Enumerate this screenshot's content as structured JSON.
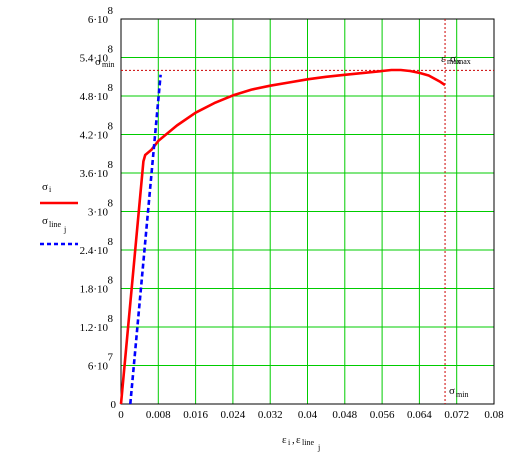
{
  "chart_data": {
    "type": "line",
    "xlim": [
      0,
      0.08
    ],
    "ylim": [
      0,
      600000000
    ],
    "grid": true,
    "grid_color": "#00cc00",
    "x_ticks": [
      {
        "value": 0,
        "label": "0"
      },
      {
        "value": 0.008,
        "label": "0.008"
      },
      {
        "value": 0.016,
        "label": "0.016"
      },
      {
        "value": 0.024,
        "label": "0.024"
      },
      {
        "value": 0.032,
        "label": "0.032"
      },
      {
        "value": 0.04,
        "label": "0.04"
      },
      {
        "value": 0.048,
        "label": "0.048"
      },
      {
        "value": 0.056,
        "label": "0.056"
      },
      {
        "value": 0.064,
        "label": "0.064"
      },
      {
        "value": 0.072,
        "label": "0.072"
      },
      {
        "value": 0.08,
        "label": "0.08"
      }
    ],
    "y_ticks": [
      {
        "value": 0,
        "base": "0",
        "exp": ""
      },
      {
        "value": 60000000,
        "base": "6·10",
        "exp": "7"
      },
      {
        "value": 120000000,
        "base": "1.2·10",
        "exp": "8"
      },
      {
        "value": 180000000,
        "base": "1.8·10",
        "exp": "8"
      },
      {
        "value": 240000000,
        "base": "2.4·10",
        "exp": "8"
      },
      {
        "value": 300000000,
        "base": "3·10",
        "exp": "8"
      },
      {
        "value": 360000000,
        "base": "3.6·10",
        "exp": "8"
      },
      {
        "value": 420000000,
        "base": "4.2·10",
        "exp": "8"
      },
      {
        "value": 480000000,
        "base": "4.8·10",
        "exp": "8"
      },
      {
        "value": 540000000,
        "base": "5.4·10",
        "exp": "8"
      },
      {
        "value": 600000000,
        "base": "6·10",
        "exp": "8"
      }
    ],
    "xlabel": {
      "a": "ε",
      "a_sub": "i",
      "sep": ",",
      "b": "ε",
      "b_sub": "line",
      "b_subsub": "j"
    },
    "legend": [
      {
        "symbol": "σ",
        "sub": "i",
        "subsub": "",
        "color": "#ff0000",
        "dash": "solid"
      },
      {
        "symbol": "σ",
        "sub": "line",
        "subsub": "j",
        "color": "#0000ff",
        "dash": "dashed"
      }
    ],
    "series": [
      {
        "color": "#ff0000",
        "style": "solid",
        "points": [
          [
            0,
            0
          ],
          [
            0.0048,
            378000000
          ],
          [
            0.0052,
            388000000
          ],
          [
            0.0065,
            396000000
          ],
          [
            0.008,
            410000000
          ],
          [
            0.012,
            434000000
          ],
          [
            0.016,
            454000000
          ],
          [
            0.02,
            469000000
          ],
          [
            0.024,
            481000000
          ],
          [
            0.028,
            490000000
          ],
          [
            0.032,
            496000000
          ],
          [
            0.036,
            501000000
          ],
          [
            0.04,
            506000000
          ],
          [
            0.044,
            510000000
          ],
          [
            0.048,
            513000000
          ],
          [
            0.052,
            516000000
          ],
          [
            0.056,
            519000000
          ],
          [
            0.058,
            520500000
          ],
          [
            0.06,
            520500000
          ],
          [
            0.062,
            519000000
          ],
          [
            0.064,
            516000000
          ],
          [
            0.066,
            512000000
          ],
          [
            0.0685,
            502000000
          ],
          [
            0.0695,
            497000000
          ]
        ]
      },
      {
        "color": "#0000ff",
        "style": "dashed",
        "points": [
          [
            0.002,
            0
          ],
          [
            0.0085,
            513000000
          ]
        ]
      }
    ],
    "reference_lines": [
      {
        "orientation": "horizontal",
        "value": 520000000,
        "color": "#cc0000",
        "style": "dotted"
      },
      {
        "orientation": "vertical",
        "value": 0.0695,
        "color": "#cc0000",
        "style": "dotted"
      }
    ],
    "annotations": [
      {
        "id": "sigma-max",
        "text": "σ",
        "sub": "max",
        "near": "horizontal-line-right"
      },
      {
        "id": "sigma-min",
        "text": "σ",
        "sub": "min",
        "near": "horizontal-line-left"
      },
      {
        "id": "eps-max",
        "text": "ε",
        "sub": "max",
        "near": "vertical-line-top"
      },
      {
        "id": "eps-min",
        "text": "σ",
        "sub": "min",
        "near": "vertical-line-bottom"
      }
    ]
  }
}
